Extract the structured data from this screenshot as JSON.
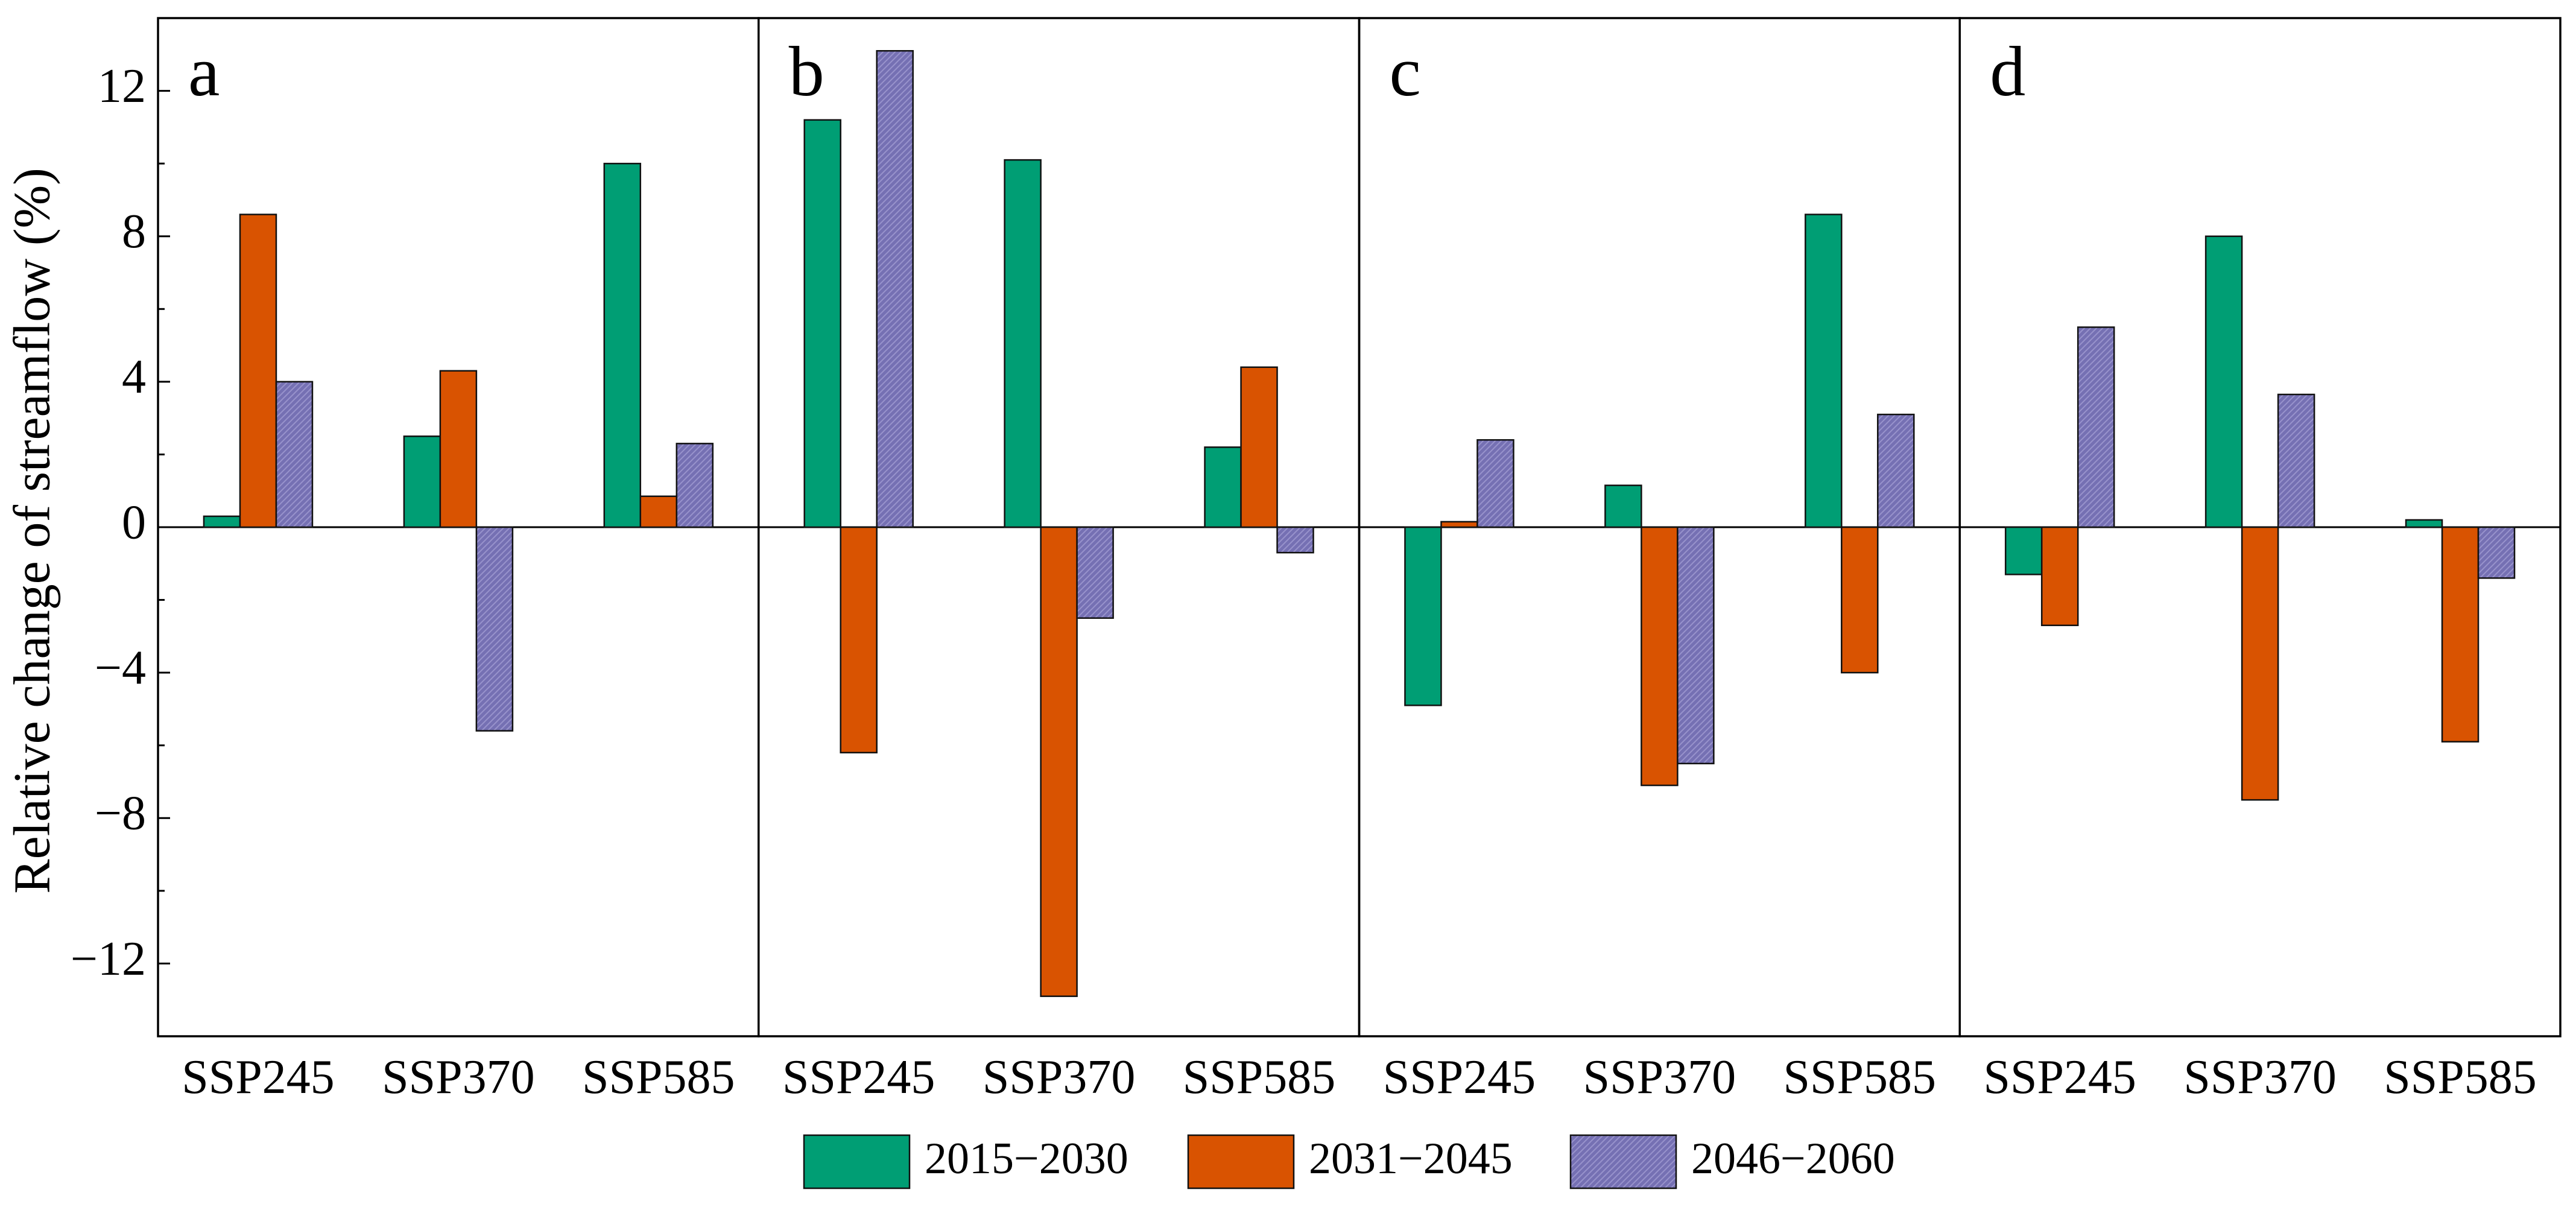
{
  "chart_data": {
    "type": "bar",
    "ylabel": "Relative change of streamflow (%)",
    "ylim": [
      -14,
      14
    ],
    "yticks": [
      -12,
      -8,
      -4,
      0,
      4,
      8,
      12
    ],
    "ytick_labels": [
      "−12",
      "−8",
      "−4",
      "0",
      "4",
      "8",
      "12"
    ],
    "categories": [
      "SSP245",
      "SSP370",
      "SSP585"
    ],
    "legend": {
      "position": "bottom-center",
      "entries": [
        {
          "label": "2015−2030",
          "color": "#009e74"
        },
        {
          "label": "2031−2045",
          "color": "#d95301"
        },
        {
          "label": "2046−2060",
          "color": "#7570b3"
        }
      ]
    },
    "panels": [
      {
        "label": "a",
        "series": [
          {
            "name": "2015−2030",
            "values": [
              0.3,
              2.5,
              10.0
            ]
          },
          {
            "name": "2031−2045",
            "values": [
              8.6,
              4.3,
              0.85
            ]
          },
          {
            "name": "2046−2060",
            "values": [
              4.0,
              -5.6,
              2.3
            ]
          }
        ]
      },
      {
        "label": "b",
        "series": [
          {
            "name": "2015−2030",
            "values": [
              11.2,
              10.1,
              2.2
            ]
          },
          {
            "name": "2031−2045",
            "values": [
              -6.2,
              -12.9,
              4.4
            ]
          },
          {
            "name": "2046−2060",
            "values": [
              13.1,
              -2.5,
              -0.7
            ]
          }
        ]
      },
      {
        "label": "c",
        "series": [
          {
            "name": "2015−2030",
            "values": [
              -4.9,
              1.15,
              8.6
            ]
          },
          {
            "name": "2031−2045",
            "values": [
              0.15,
              -7.1,
              -4.0
            ]
          },
          {
            "name": "2046−2060",
            "values": [
              2.4,
              -6.5,
              3.1
            ]
          }
        ]
      },
      {
        "label": "d",
        "series": [
          {
            "name": "2015−2030",
            "values": [
              -1.3,
              8.0,
              0.2
            ]
          },
          {
            "name": "2031−2045",
            "values": [
              -2.7,
              -7.5,
              -5.9
            ]
          },
          {
            "name": "2046−2060",
            "values": [
              5.5,
              3.65,
              -1.4
            ]
          }
        ]
      }
    ]
  }
}
